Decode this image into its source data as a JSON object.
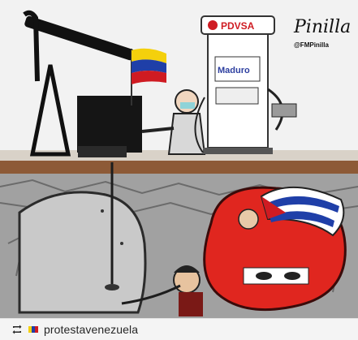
{
  "cartoon": {
    "pump_brand": "PDVSA",
    "sticker_text": "Maduro",
    "artist_signature": "Pinilla",
    "artist_handle": "@FMPinilla",
    "cap_text": "CUBA"
  },
  "footer": {
    "username": "protestavenezuela",
    "repost_icon": "repost-icon",
    "avatar_icon": "avatar-icon"
  },
  "colors": {
    "sky": "#f2f2f2",
    "ground": "#7b4b2e",
    "cave": "#c8c8c8",
    "blob": "#e0261f",
    "flag_yellow": "#f4d00c",
    "flag_blue": "#1f3fa8",
    "flag_red": "#cf1b22"
  }
}
